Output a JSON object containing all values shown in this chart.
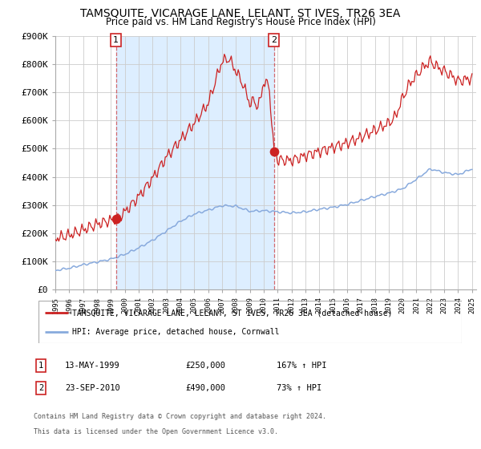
{
  "title": "TAMSQUITE, VICARAGE LANE, LELANT, ST IVES, TR26 3EA",
  "subtitle": "Price paid vs. HM Land Registry's House Price Index (HPI)",
  "x_start_year": 1995,
  "x_end_year": 2025,
  "y_min": 0,
  "y_max": 900000,
  "y_ticks": [
    0,
    100000,
    200000,
    300000,
    400000,
    500000,
    600000,
    700000,
    800000,
    900000
  ],
  "y_tick_labels": [
    "£0",
    "£100K",
    "£200K",
    "£300K",
    "£400K",
    "£500K",
    "£600K",
    "£700K",
    "£800K",
    "£900K"
  ],
  "hpi_color": "#88aadd",
  "price_color": "#cc2222",
  "shade_color": "#ddeeff",
  "plot_bg": "#ffffff",
  "grid_color": "#cccccc",
  "purchase1_year": 1999.37,
  "purchase1_price": 250000,
  "purchase2_year": 2010.73,
  "purchase2_price": 490000,
  "legend_label_red": "TAMSQUITE, VICARAGE LANE, LELANT, ST IVES, TR26 3EA (detached house)",
  "legend_label_blue": "HPI: Average price, detached house, Cornwall",
  "table_row1_num": "1",
  "table_row1_date": "13-MAY-1999",
  "table_row1_price": "£250,000",
  "table_row1_hpi": "167% ↑ HPI",
  "table_row2_num": "2",
  "table_row2_date": "23-SEP-2010",
  "table_row2_price": "£490,000",
  "table_row2_hpi": "73% ↑ HPI",
  "footnote_line1": "Contains HM Land Registry data © Crown copyright and database right 2024.",
  "footnote_line2": "This data is licensed under the Open Government Licence v3.0."
}
